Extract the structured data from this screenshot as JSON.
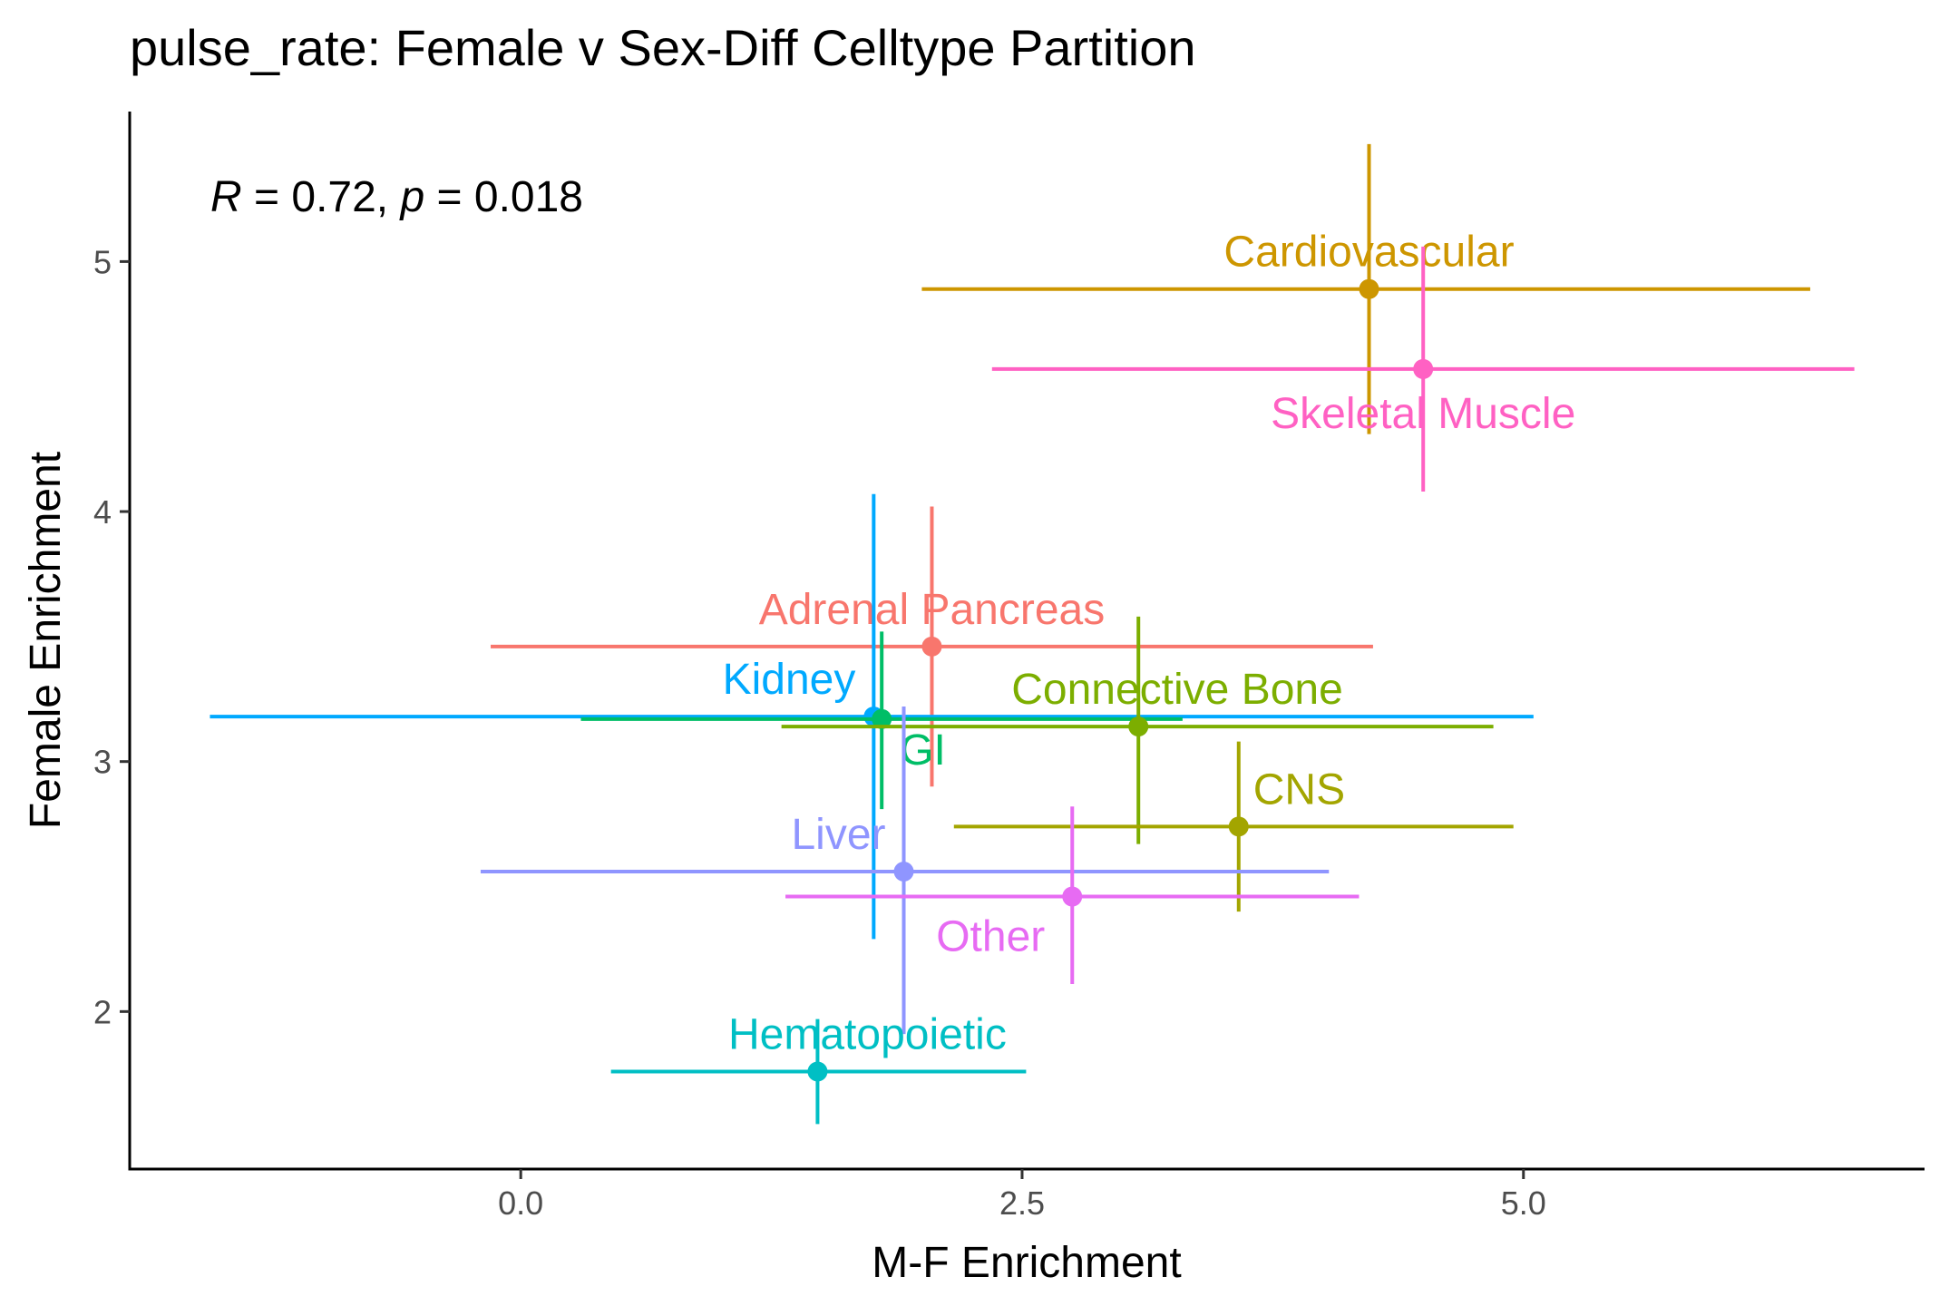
{
  "chart_data": {
    "type": "scatter",
    "title": "pulse_rate: Female v Sex-Diff Celltype Partition",
    "xlabel": "M-F Enrichment",
    "ylabel": "Female Enrichment",
    "xlim": [
      -1.95,
      7.0
    ],
    "ylim": [
      1.37,
      5.6
    ],
    "x_ticks": [
      0.0,
      2.5,
      5.0
    ],
    "x_tick_labels": [
      "0.0",
      "2.5",
      "5.0"
    ],
    "y_ticks": [
      2,
      3,
      4,
      5
    ],
    "y_tick_labels": [
      "2",
      "3",
      "4",
      "5"
    ],
    "grid": false,
    "legend": "none",
    "annotation": {
      "r_sym": "R",
      "r_text": " = 0.72, ",
      "p_sym": "p",
      "p_text": " = 0.018"
    },
    "points": [
      {
        "label": "Cardiovascular",
        "color": "#CD9600",
        "x": 4.23,
        "y": 4.89,
        "xmin": 2.0,
        "xmax": 6.43,
        "ymin": 4.31,
        "ymax": 5.47,
        "label_pos": "above"
      },
      {
        "label": "Skeletal Muscle",
        "color": "#FF61C3",
        "x": 4.5,
        "y": 4.57,
        "xmin": 2.35,
        "xmax": 6.65,
        "ymin": 4.08,
        "ymax": 5.06,
        "label_pos": "below"
      },
      {
        "label": "Adrenal Pancreas",
        "color": "#F8766D",
        "x": 2.05,
        "y": 3.46,
        "xmin": -0.15,
        "xmax": 4.25,
        "ymin": 2.9,
        "ymax": 4.02,
        "label_pos": "above"
      },
      {
        "label": "Kidney",
        "color": "#00A9FF",
        "x": 1.76,
        "y": 3.18,
        "xmin": -1.55,
        "xmax": 5.05,
        "ymin": 2.29,
        "ymax": 4.07,
        "label_pos": "above-left"
      },
      {
        "label": "GI",
        "color": "#00BE67",
        "x": 1.8,
        "y": 3.17,
        "xmin": 0.3,
        "xmax": 3.3,
        "ymin": 2.81,
        "ymax": 3.52,
        "label_pos": "below-right"
      },
      {
        "label": "Connective Bone",
        "color": "#7CAE00",
        "x": 3.08,
        "y": 3.14,
        "xmin": 1.3,
        "xmax": 4.85,
        "ymin": 2.67,
        "ymax": 3.58,
        "label_pos": "above-right"
      },
      {
        "label": "CNS",
        "color": "#A3A500",
        "x": 3.58,
        "y": 2.74,
        "xmin": 2.16,
        "xmax": 4.95,
        "ymin": 2.4,
        "ymax": 3.08,
        "label_pos": "above-right"
      },
      {
        "label": "Liver",
        "color": "#8F95FF",
        "x": 1.91,
        "y": 2.56,
        "xmin": -0.2,
        "xmax": 4.03,
        "ymin": 1.91,
        "ymax": 3.22,
        "label_pos": "above-left"
      },
      {
        "label": "Other",
        "color": "#E76BF3",
        "x": 2.75,
        "y": 2.46,
        "xmin": 1.32,
        "xmax": 4.18,
        "ymin": 2.11,
        "ymax": 2.82,
        "label_pos": "below-left"
      },
      {
        "label": "Hematopoietic",
        "color": "#00BFC4",
        "x": 1.48,
        "y": 1.76,
        "xmin": 0.45,
        "xmax": 2.52,
        "ymin": 1.55,
        "ymax": 1.97,
        "label_pos": "above-right"
      }
    ]
  }
}
